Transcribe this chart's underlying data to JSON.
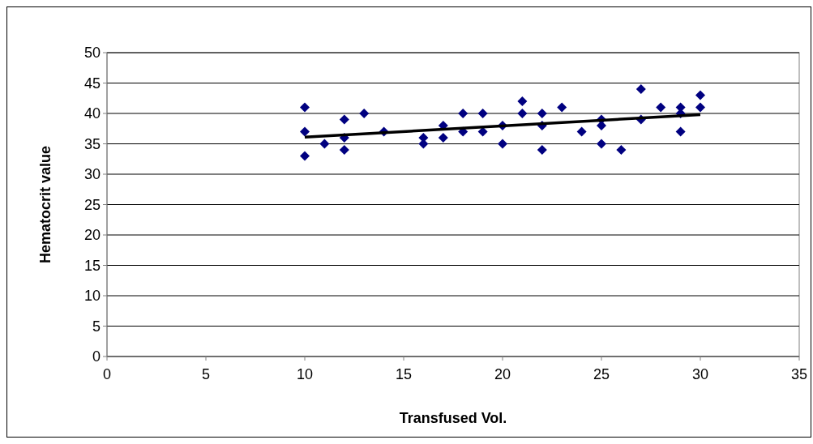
{
  "chart_data": {
    "type": "scatter",
    "xlabel": "Transfused Vol.",
    "ylabel": "Hematocrit value",
    "xlim": [
      0,
      35
    ],
    "xticks": [
      0,
      5,
      10,
      15,
      20,
      25,
      30,
      35
    ],
    "ylim": [
      0,
      50
    ],
    "yticks": [
      0,
      5,
      10,
      15,
      20,
      25,
      30,
      35,
      40,
      45,
      50
    ],
    "grid": "y",
    "series": [
      {
        "color": "#000080",
        "marker": "diamond",
        "x": [
          10,
          10,
          10,
          11,
          12,
          12,
          12,
          13,
          14,
          16,
          16,
          17,
          17,
          18,
          18,
          19,
          19,
          20,
          20,
          21,
          21,
          22,
          22,
          22,
          23,
          24,
          25,
          25,
          25,
          26,
          27,
          27,
          28,
          29,
          29,
          29,
          30,
          30
        ],
        "values": [
          41,
          37,
          33,
          35,
          39,
          36,
          34,
          40,
          37,
          36,
          35,
          38,
          36,
          40,
          37,
          40,
          37,
          38,
          35,
          42,
          40,
          40,
          38,
          34,
          41,
          37,
          39,
          38,
          35,
          34,
          44,
          39,
          41,
          41,
          40,
          37,
          43,
          41
        ]
      },
      {
        "type": "line",
        "color": "#000000",
        "marker": "none",
        "x": [
          10,
          30
        ],
        "values": [
          36.1,
          39.8
        ]
      }
    ]
  }
}
